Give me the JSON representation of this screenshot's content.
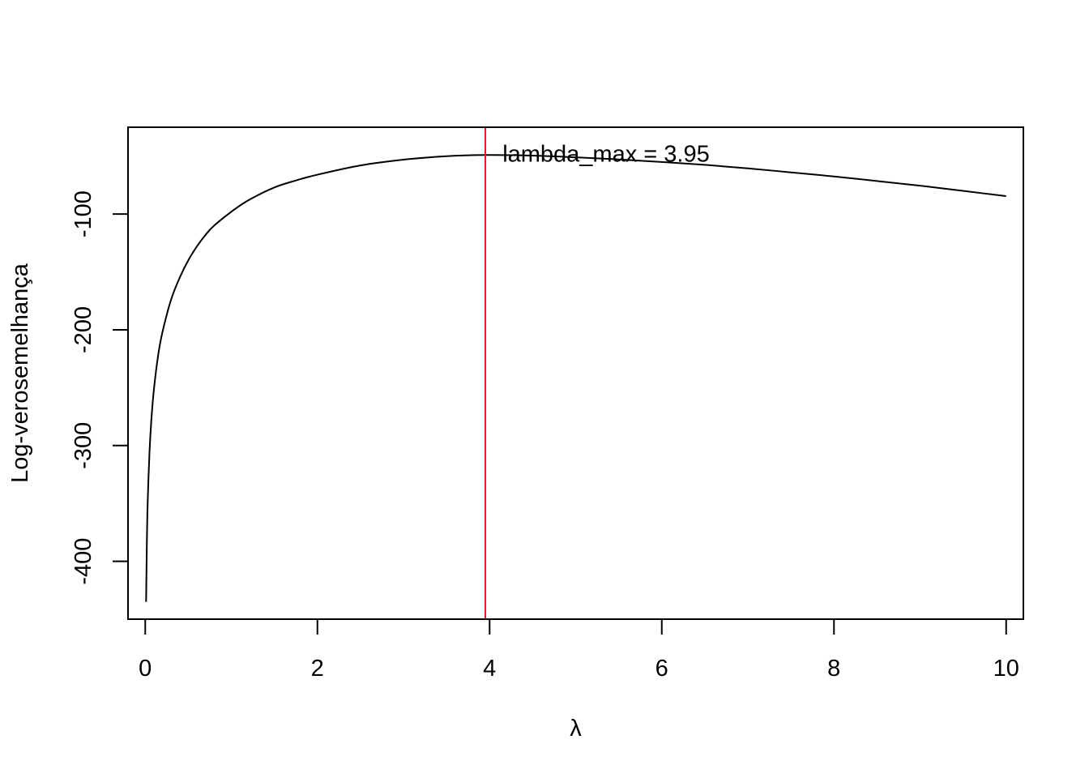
{
  "chart_data": {
    "type": "line",
    "title": "",
    "xlabel": "λ",
    "ylabel": "Log-verosemelhança",
    "xlim": [
      -0.2,
      10.2
    ],
    "ylim": [
      -450,
      -25
    ],
    "x_ticks": [
      0,
      2,
      4,
      6,
      8,
      10
    ],
    "x_tick_labels": [
      "0",
      "2",
      "4",
      "6",
      "8",
      "10"
    ],
    "y_ticks": [
      -400,
      -300,
      -200,
      -100
    ],
    "y_tick_labels": [
      "-400",
      "-300",
      "-200",
      "-100"
    ],
    "grid": false,
    "series": [
      {
        "color": "#000000",
        "x": [
          0.01,
          0.02,
          0.03,
          0.05,
          0.07,
          0.1,
          0.15,
          0.2,
          0.3,
          0.4,
          0.5,
          0.6,
          0.7,
          0.8,
          1.0,
          1.2,
          1.5,
          1.75,
          2.0,
          2.5,
          3.0,
          3.5,
          3.95,
          4.5,
          5.0,
          5.5,
          6.0,
          6.5,
          7.0,
          7.5,
          8.0,
          8.5,
          9.0,
          9.5,
          10.0
        ],
        "y": [
          -435,
          -378,
          -345,
          -305,
          -279,
          -252,
          -222,
          -202,
          -174,
          -155,
          -140,
          -128,
          -118,
          -110,
          -98,
          -88,
          -77,
          -71,
          -66,
          -58,
          -53,
          -50,
          -49,
          -49.5,
          -51,
          -52.8,
          -55,
          -57.5,
          -60.5,
          -64,
          -67.5,
          -71.5,
          -75.5,
          -80,
          -84.5
        ]
      }
    ],
    "vline": {
      "x": 3.95,
      "color": "#e8141e"
    },
    "annotation": {
      "text": "lambda_max = 3.95",
      "x": 4.15,
      "y": -49
    }
  }
}
